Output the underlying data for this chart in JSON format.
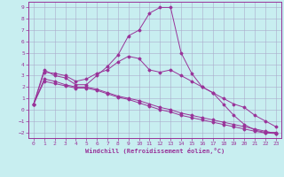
{
  "xlabel": "Windchill (Refroidissement éolien,°C)",
  "bg_color": "#c8eef0",
  "grid_color": "#aaaacc",
  "line_color": "#993399",
  "xlim": [
    -0.5,
    23.5
  ],
  "ylim": [
    -2.5,
    9.5
  ],
  "xticks": [
    0,
    1,
    2,
    3,
    4,
    5,
    6,
    7,
    8,
    9,
    10,
    11,
    12,
    13,
    14,
    15,
    16,
    17,
    18,
    19,
    20,
    21,
    22,
    23
  ],
  "yticks": [
    -2,
    -1,
    0,
    1,
    2,
    3,
    4,
    5,
    6,
    7,
    8,
    9
  ],
  "series": [
    {
      "x": [
        0,
        1,
        2,
        3,
        4,
        5,
        6,
        7,
        8,
        9,
        10,
        11,
        12,
        13,
        14,
        15,
        16,
        17,
        18,
        19,
        20,
        21,
        22,
        23
      ],
      "y": [
        0.5,
        3.5,
        3.0,
        2.8,
        2.2,
        2.2,
        3.0,
        3.8,
        4.8,
        6.5,
        7.0,
        8.5,
        9.0,
        9.0,
        5.0,
        3.2,
        2.0,
        1.5,
        0.5,
        -0.5,
        -1.3,
        -1.8,
        -2.0,
        -2.0
      ]
    },
    {
      "x": [
        0,
        1,
        2,
        3,
        4,
        5,
        6,
        7,
        8,
        9,
        10,
        11,
        12,
        13,
        14,
        15,
        16,
        17,
        18,
        19,
        20,
        21,
        22,
        23
      ],
      "y": [
        0.5,
        3.3,
        3.2,
        3.0,
        2.5,
        2.7,
        3.2,
        3.5,
        4.2,
        4.7,
        4.5,
        3.5,
        3.3,
        3.5,
        3.0,
        2.5,
        2.0,
        1.5,
        1.0,
        0.5,
        0.2,
        -0.5,
        -1.0,
        -1.5
      ]
    },
    {
      "x": [
        0,
        1,
        2,
        3,
        4,
        5,
        6,
        7,
        8,
        9,
        10,
        11,
        12,
        13,
        14,
        15,
        16,
        17,
        18,
        19,
        20,
        21,
        22,
        23
      ],
      "y": [
        0.5,
        2.7,
        2.5,
        2.2,
        2.0,
        2.0,
        1.8,
        1.5,
        1.2,
        1.0,
        0.8,
        0.5,
        0.2,
        0.0,
        -0.3,
        -0.5,
        -0.7,
        -0.9,
        -1.1,
        -1.3,
        -1.5,
        -1.7,
        -1.9,
        -2.1
      ]
    },
    {
      "x": [
        0,
        1,
        2,
        3,
        4,
        5,
        6,
        7,
        8,
        9,
        10,
        11,
        12,
        13,
        14,
        15,
        16,
        17,
        18,
        19,
        20,
        21,
        22,
        23
      ],
      "y": [
        0.5,
        2.5,
        2.3,
        2.1,
        1.9,
        1.9,
        1.7,
        1.4,
        1.1,
        0.9,
        0.6,
        0.3,
        0.0,
        -0.2,
        -0.5,
        -0.7,
        -0.9,
        -1.1,
        -1.3,
        -1.5,
        -1.7,
        -1.9,
        -2.05,
        -2.1
      ]
    }
  ]
}
